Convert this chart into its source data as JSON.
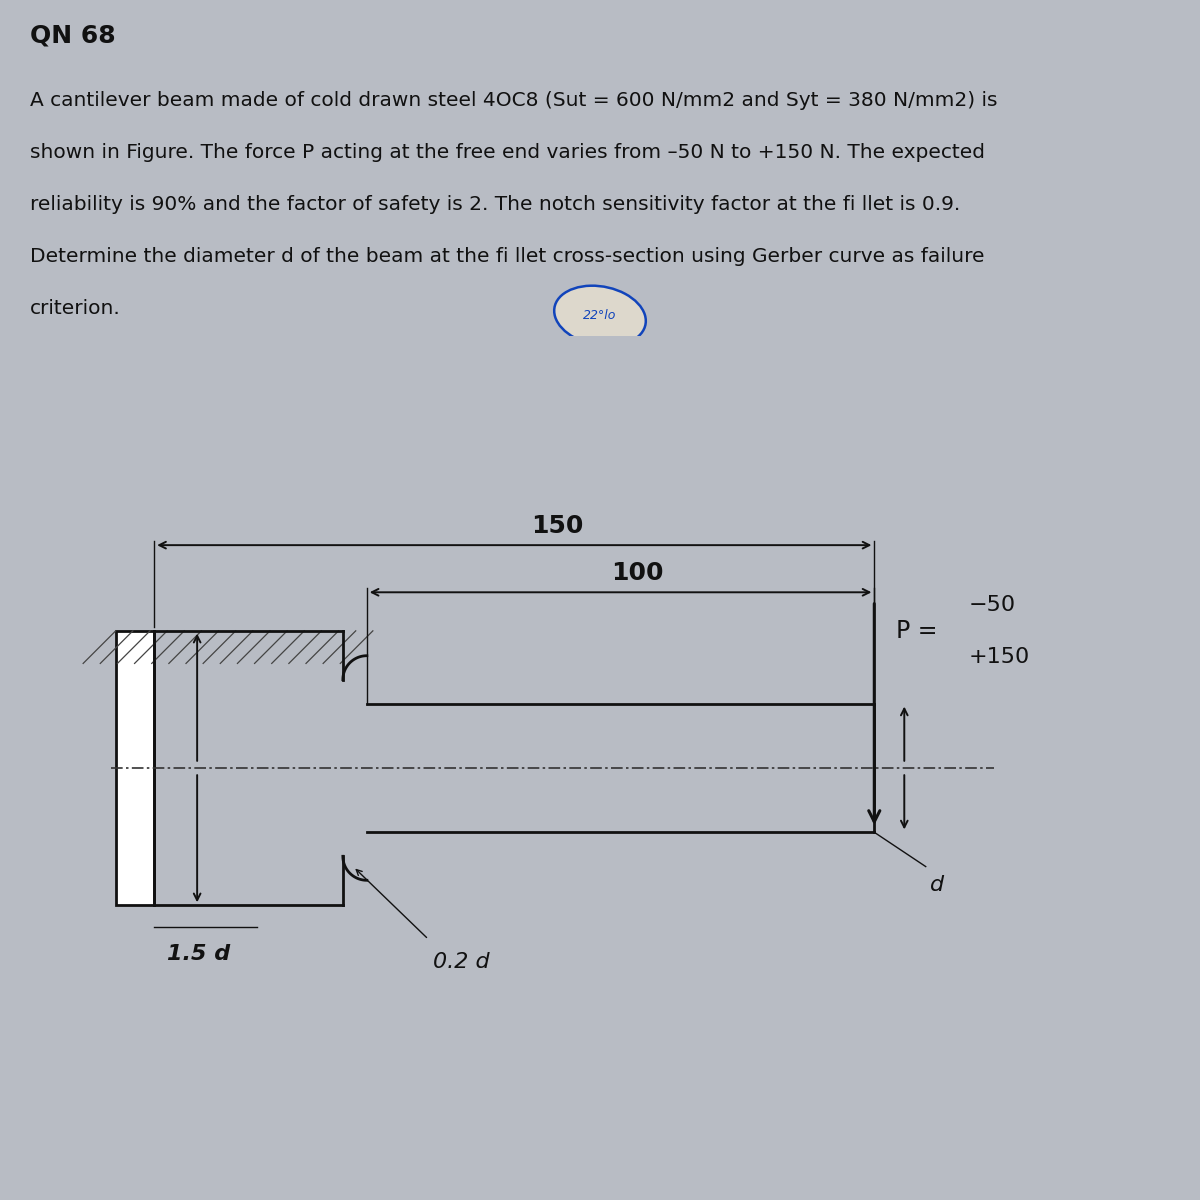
{
  "title": "QN 68",
  "line1": "A cantilever beam made of cold drawn steel 4OC8 (Sut = 600 N/mm2 and Syt = 380 N/mm2) is",
  "line2": "shown in Figure. The force P acting at the free end varies from –50 N to +150 N. The expected",
  "line3": "reliability is 90% and the factor of safety is 2. The notch sensitivity factor at the fi llet is 0.9.",
  "line4": "Determine the diameter d of the beam at the fi llet cross-section using Gerber curve as failure",
  "line5": "criterion.",
  "bg_color_top": "#d8d0c4",
  "bg_color_bot": "#b8bcc4",
  "text_color": "#111111",
  "dim_150": "150",
  "dim_100": "100",
  "dim_02d": "0.2 d",
  "dim_15d": "1.5 d",
  "dim_d": "d",
  "P_label": "P =",
  "P_val1": "−50",
  "P_val2": "+150",
  "line_color": "#111111",
  "hatch_color": "#444444",
  "center_color": "#333333",
  "title_fontsize": 18,
  "body_fontsize": 14.5,
  "dim_fontsize": 18,
  "label_fontsize": 16
}
